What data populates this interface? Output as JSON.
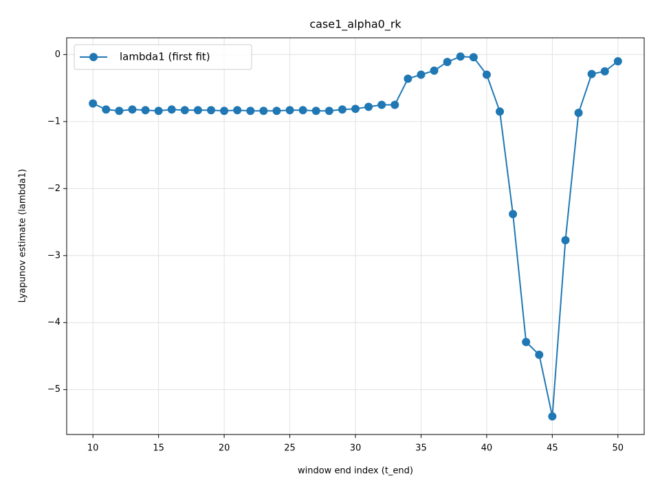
{
  "chart_data": {
    "type": "line",
    "title": "case1_alpha0_rk",
    "xlabel": "window end index (t_end)",
    "ylabel": "Lyapunov estimate (lambda1)",
    "x": [
      10,
      11,
      12,
      13,
      14,
      15,
      16,
      17,
      18,
      19,
      20,
      21,
      22,
      23,
      24,
      25,
      26,
      27,
      28,
      29,
      30,
      31,
      32,
      33,
      34,
      35,
      36,
      37,
      38,
      39,
      40,
      41,
      42,
      43,
      44,
      45,
      46,
      47,
      48,
      49,
      50
    ],
    "series": [
      {
        "name": "lambda1 (first fit)",
        "color": "#1f77b4",
        "values": [
          -0.73,
          -0.82,
          -0.84,
          -0.82,
          -0.83,
          -0.84,
          -0.82,
          -0.83,
          -0.83,
          -0.83,
          -0.84,
          -0.83,
          -0.84,
          -0.84,
          -0.84,
          -0.83,
          -0.83,
          -0.84,
          -0.84,
          -0.82,
          -0.81,
          -0.78,
          -0.75,
          -0.75,
          -0.36,
          -0.3,
          -0.24,
          -0.11,
          -0.03,
          -0.04,
          -0.3,
          -0.85,
          -2.38,
          -4.29,
          -4.48,
          -5.4,
          -2.77,
          -0.87,
          -0.29,
          -0.25,
          -0.1
        ]
      }
    ],
    "xlim": [
      8,
      52
    ],
    "ylim": [
      -5.67,
      0.25
    ],
    "xticks": [
      10,
      15,
      20,
      25,
      30,
      35,
      40,
      45,
      50
    ],
    "yticks": [
      {
        "value": -5,
        "label": "−5"
      },
      {
        "value": -4,
        "label": "−4"
      },
      {
        "value": -3,
        "label": "−3"
      },
      {
        "value": -2,
        "label": "−2"
      },
      {
        "value": -1,
        "label": "−1"
      },
      0
    ],
    "grid": true,
    "legend": "upper left"
  }
}
